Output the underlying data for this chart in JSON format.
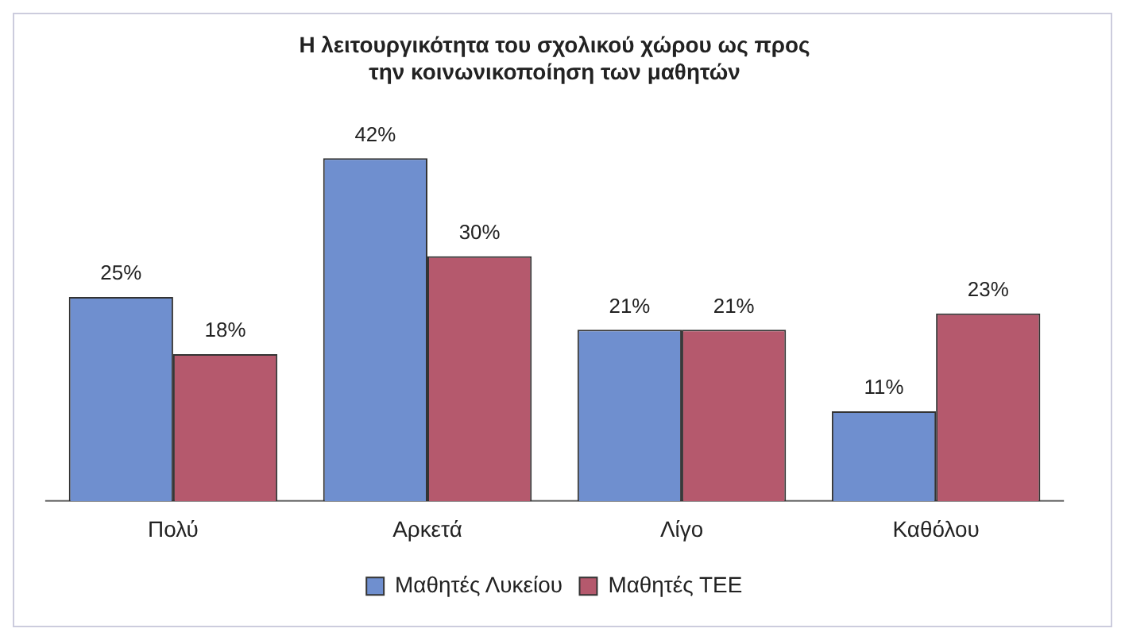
{
  "chart_data": {
    "type": "bar",
    "title": "Η λειτουργικότητα του σχολικού χώρου ως προς την κοινωνικοποίηση των μαθητών",
    "categories": [
      "Πολύ",
      "Αρκετά",
      "Λίγο",
      "Καθόλου"
    ],
    "series": [
      {
        "name": "Μαθητές Λυκείου",
        "color": "#6f8fcf",
        "values": [
          25,
          42,
          21,
          11
        ],
        "value_labels": [
          "25%",
          "42%",
          "21%",
          "11%"
        ]
      },
      {
        "name": "Μαθητές ΤΕΕ",
        "color": "#b5596d",
        "values": [
          18,
          30,
          21,
          23
        ],
        "value_labels": [
          "18%",
          "30%",
          "21%",
          "23%"
        ]
      }
    ],
    "legend": "bottom",
    "grid": false
  }
}
